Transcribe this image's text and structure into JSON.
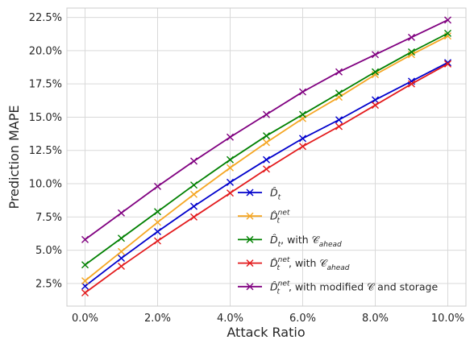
{
  "chart_data": {
    "type": "line",
    "xlabel": "Attack Ratio",
    "ylabel": "Prediction MAPE",
    "x": [
      0.0,
      1.0,
      2.0,
      3.0,
      4.0,
      5.0,
      6.0,
      7.0,
      8.0,
      9.0,
      10.0
    ],
    "xticks": [
      "0.0%",
      "2.0%",
      "4.0%",
      "6.0%",
      "8.0%",
      "10.0%"
    ],
    "xtick_values": [
      0,
      2,
      4,
      6,
      8,
      10
    ],
    "yticks": [
      "2.5%",
      "5.0%",
      "7.5%",
      "10.0%",
      "12.5%",
      "15.0%",
      "17.5%",
      "20.0%",
      "22.5%"
    ],
    "ytick_values": [
      2.5,
      5.0,
      7.5,
      10.0,
      12.5,
      15.0,
      17.5,
      20.0,
      22.5
    ],
    "xlim": [
      -0.5,
      10.5
    ],
    "ylim": [
      0.8,
      23.2
    ],
    "grid": true,
    "legend_position": "lower-right",
    "marker": "x",
    "series": [
      {
        "name_main": "D̂",
        "name_sup": "",
        "name_sub": "t",
        "name_suffix": "",
        "color": "#0000cc",
        "values": [
          2.3,
          4.4,
          6.4,
          8.3,
          10.1,
          11.8,
          13.4,
          14.8,
          16.3,
          17.7,
          19.1
        ]
      },
      {
        "name_main": "D̂",
        "name_sup": "net",
        "name_sub": "t",
        "name_suffix": "",
        "color": "#f5a623",
        "values": [
          2.7,
          4.9,
          7.1,
          9.2,
          11.2,
          13.1,
          14.9,
          16.5,
          18.2,
          19.7,
          21.1
        ]
      },
      {
        "name_main": "D̂",
        "name_sup": "",
        "name_sub": "t",
        "name_suffix": ", with 𝒞",
        "name_suffix_sub": "ahead",
        "color": "#008000",
        "values": [
          3.9,
          5.9,
          7.9,
          9.9,
          11.8,
          13.6,
          15.2,
          16.8,
          18.4,
          19.9,
          21.3
        ]
      },
      {
        "name_main": "D̂",
        "name_sup": "net",
        "name_sub": "t",
        "name_suffix": ", with 𝒞",
        "name_suffix_sub": "ahead",
        "color": "#e31a1c",
        "values": [
          1.8,
          3.8,
          5.7,
          7.5,
          9.3,
          11.1,
          12.8,
          14.3,
          15.9,
          17.5,
          19.0
        ]
      },
      {
        "name_main": "D̂",
        "name_sup": "net",
        "name_sub": "t",
        "name_suffix": ", with modified 𝒞 and storage",
        "name_suffix_sub": "",
        "color": "#800080",
        "values": [
          5.8,
          7.8,
          9.8,
          11.7,
          13.5,
          15.2,
          16.9,
          18.4,
          19.7,
          21.0,
          22.3
        ]
      }
    ]
  }
}
